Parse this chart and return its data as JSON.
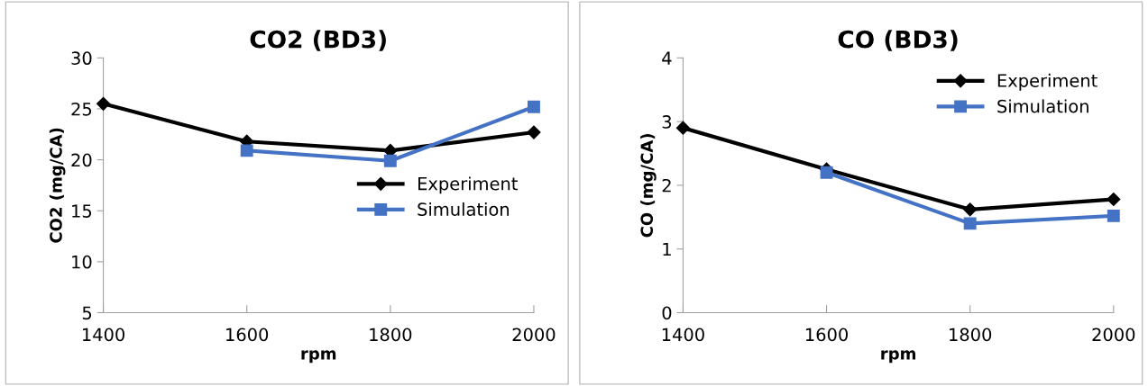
{
  "chart_data": [
    {
      "type": "line",
      "title": "CO2 (BD3)",
      "xlabel": "rpm",
      "ylabel": "CO2 (mg/CA)",
      "categories": [
        "1400",
        "1600",
        "1800",
        "2000"
      ],
      "ylim": [
        5,
        30
      ],
      "yticks": [
        5,
        10,
        15,
        20,
        25,
        30
      ],
      "legend": "center right",
      "grid": false,
      "series": [
        {
          "name": "Experiment",
          "color": "#000000",
          "marker": "diamond",
          "values": [
            25.5,
            21.8,
            20.9,
            22.7
          ]
        },
        {
          "name": "Simulation",
          "color": "#4472c4",
          "marker": "square",
          "values": [
            null,
            20.9,
            19.9,
            25.2
          ]
        }
      ]
    },
    {
      "type": "line",
      "title": "CO (BD3)",
      "xlabel": "rpm",
      "ylabel": "CO (mg/CA)",
      "categories": [
        "1400",
        "1600",
        "1800",
        "2000"
      ],
      "ylim": [
        0,
        4
      ],
      "yticks": [
        0,
        1,
        2,
        3,
        4
      ],
      "legend": "top right",
      "grid": false,
      "series": [
        {
          "name": "Experiment",
          "color": "#000000",
          "marker": "diamond",
          "values": [
            2.9,
            2.25,
            1.62,
            1.78
          ]
        },
        {
          "name": "Simulation",
          "color": "#4472c4",
          "marker": "square",
          "values": [
            null,
            2.2,
            1.4,
            1.52
          ]
        }
      ]
    }
  ]
}
